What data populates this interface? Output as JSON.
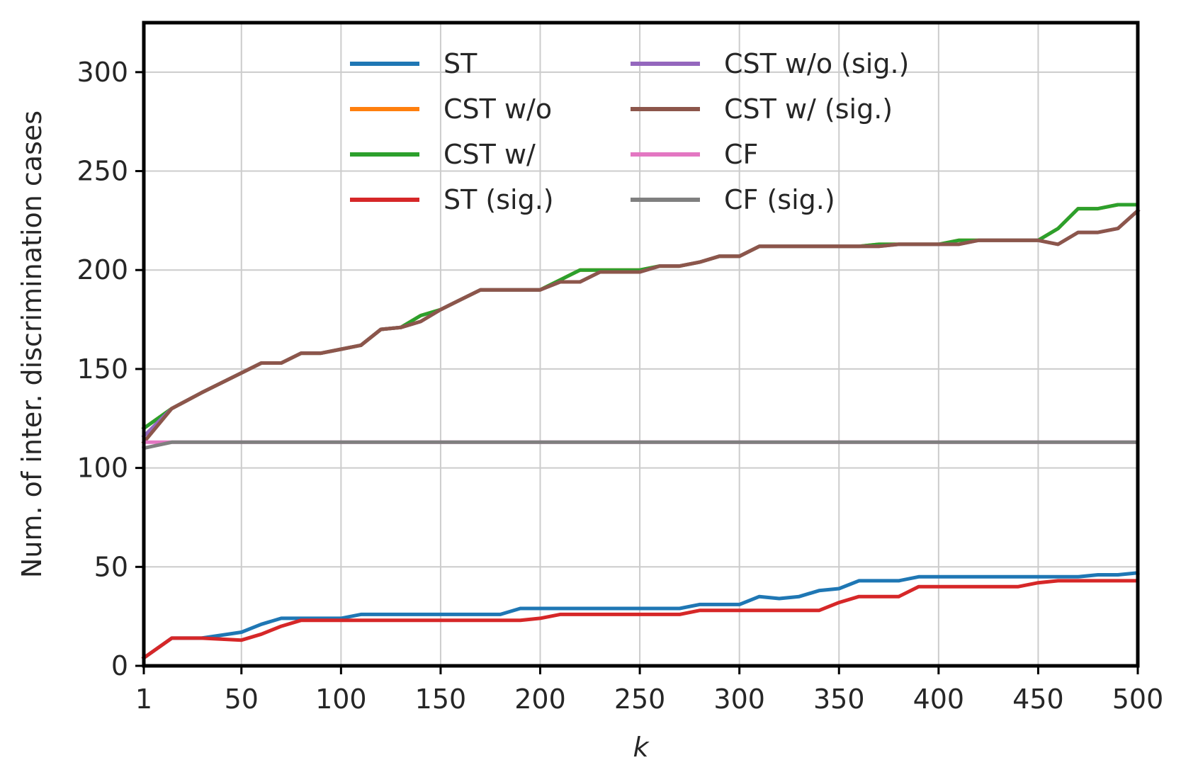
{
  "chart_data": {
    "type": "line",
    "title": "",
    "xlabel": "k",
    "ylabel": "Num. of inter. discrimination cases",
    "xlim": [
      1,
      500
    ],
    "ylim": [
      0,
      325
    ],
    "xticks": [
      1,
      50,
      100,
      150,
      200,
      250,
      300,
      350,
      400,
      450,
      500
    ],
    "yticks": [
      0,
      50,
      100,
      150,
      200,
      250,
      300
    ],
    "grid": true,
    "legend_position": "top",
    "legend_columns": 2,
    "series": [
      {
        "name": "ST",
        "color": "#1f77b4",
        "x": [
          1,
          15,
          30,
          50,
          60,
          70,
          80,
          90,
          100,
          110,
          120,
          130,
          140,
          150,
          160,
          170,
          180,
          190,
          200,
          250,
          270,
          280,
          290,
          300,
          310,
          320,
          330,
          340,
          350,
          360,
          370,
          380,
          390,
          400,
          450,
          470,
          480,
          490,
          500
        ],
        "y": [
          4,
          14,
          14,
          17,
          21,
          24,
          24,
          24,
          24,
          26,
          26,
          26,
          26,
          26,
          26,
          26,
          26,
          29,
          29,
          29,
          29,
          31,
          31,
          31,
          35,
          34,
          35,
          38,
          39,
          43,
          43,
          43,
          45,
          45,
          45,
          45,
          46,
          46,
          47
        ]
      },
      {
        "name": "CST w/o",
        "color": "#ff7f0e",
        "x": [
          1,
          15,
          30,
          50,
          60,
          70,
          80,
          90,
          100,
          110,
          120,
          130,
          140,
          150,
          160,
          170,
          180,
          190,
          200,
          210,
          220,
          230,
          240,
          250,
          260,
          270,
          280,
          290,
          300,
          310,
          320,
          330,
          340,
          350,
          360,
          370,
          380,
          390,
          400,
          410,
          420,
          430,
          440,
          450,
          460,
          470,
          480,
          490,
          500
        ],
        "y": [
          120,
          130,
          138,
          148,
          153,
          153,
          158,
          158,
          160,
          162,
          170,
          171,
          177,
          180,
          185,
          190,
          190,
          190,
          190,
          195,
          200,
          200,
          200,
          200,
          202,
          202,
          204,
          207,
          207,
          212,
          212,
          212,
          212,
          212,
          212,
          213,
          213,
          213,
          213,
          215,
          215,
          215,
          215,
          215,
          221,
          231,
          231,
          233,
          233
        ]
      },
      {
        "name": "CST w/",
        "color": "#2ca02c",
        "x": [
          1,
          15,
          30,
          50,
          60,
          70,
          80,
          90,
          100,
          110,
          120,
          130,
          140,
          150,
          160,
          170,
          180,
          190,
          200,
          210,
          220,
          230,
          240,
          250,
          260,
          270,
          280,
          290,
          300,
          310,
          320,
          330,
          340,
          350,
          360,
          370,
          380,
          390,
          400,
          410,
          420,
          430,
          440,
          450,
          460,
          470,
          480,
          490,
          500
        ],
        "y": [
          120,
          130,
          138,
          148,
          153,
          153,
          158,
          158,
          160,
          162,
          170,
          171,
          177,
          180,
          185,
          190,
          190,
          190,
          190,
          195,
          200,
          200,
          200,
          200,
          202,
          202,
          204,
          207,
          207,
          212,
          212,
          212,
          212,
          212,
          212,
          213,
          213,
          213,
          213,
          215,
          215,
          215,
          215,
          215,
          221,
          231,
          231,
          233,
          233
        ]
      },
      {
        "name": "ST (sig.)",
        "color": "#d62728",
        "x": [
          1,
          15,
          30,
          50,
          60,
          70,
          80,
          90,
          100,
          110,
          120,
          130,
          140,
          150,
          160,
          170,
          180,
          190,
          200,
          210,
          220,
          230,
          240,
          250,
          260,
          270,
          280,
          290,
          300,
          310,
          320,
          330,
          340,
          350,
          360,
          370,
          380,
          390,
          400,
          410,
          420,
          430,
          440,
          450,
          460,
          470,
          480,
          490,
          500
        ],
        "y": [
          4,
          14,
          14,
          13,
          16,
          20,
          23,
          23,
          23,
          23,
          23,
          23,
          23,
          23,
          23,
          23,
          23,
          23,
          24,
          26,
          26,
          26,
          26,
          26,
          26,
          26,
          28,
          28,
          28,
          28,
          28,
          28,
          28,
          32,
          35,
          35,
          35,
          40,
          40,
          40,
          40,
          40,
          40,
          42,
          43,
          43,
          43,
          43,
          43
        ]
      },
      {
        "name": "CST w/o (sig.)",
        "color": "#9467bd",
        "x": [
          1,
          15,
          30,
          50,
          60,
          70,
          80,
          90,
          100,
          110,
          120,
          130,
          140,
          150,
          160,
          170,
          180,
          190,
          200,
          210,
          220,
          230,
          240,
          250,
          260,
          270,
          280,
          290,
          300,
          310,
          320,
          330,
          340,
          350,
          360,
          370,
          380,
          390,
          400,
          410,
          420,
          430,
          440,
          450,
          460,
          470,
          480,
          490,
          500
        ],
        "y": [
          116,
          130,
          138,
          148,
          153,
          153,
          158,
          158,
          160,
          162,
          170,
          171,
          174,
          180,
          185,
          190,
          190,
          190,
          190,
          194,
          194,
          199,
          199,
          199,
          202,
          202,
          204,
          207,
          207,
          212,
          212,
          212,
          212,
          212,
          212,
          212,
          213,
          213,
          213,
          213,
          215,
          215,
          215,
          215,
          213,
          219,
          219,
          221,
          230
        ]
      },
      {
        "name": "CST w/ (sig.)",
        "color": "#8c564b",
        "x": [
          1,
          15,
          30,
          50,
          60,
          70,
          80,
          90,
          100,
          110,
          120,
          130,
          140,
          150,
          160,
          170,
          180,
          190,
          200,
          210,
          220,
          230,
          240,
          250,
          260,
          270,
          280,
          290,
          300,
          310,
          320,
          330,
          340,
          350,
          360,
          370,
          380,
          390,
          400,
          410,
          420,
          430,
          440,
          450,
          460,
          470,
          480,
          490,
          500
        ],
        "y": [
          113,
          130,
          138,
          148,
          153,
          153,
          158,
          158,
          160,
          162,
          170,
          171,
          174,
          180,
          185,
          190,
          190,
          190,
          190,
          194,
          194,
          199,
          199,
          199,
          202,
          202,
          204,
          207,
          207,
          212,
          212,
          212,
          212,
          212,
          212,
          212,
          213,
          213,
          213,
          213,
          215,
          215,
          215,
          215,
          213,
          219,
          219,
          221,
          230
        ]
      },
      {
        "name": "CF",
        "color": "#e377c2",
        "x": [
          1,
          15,
          500
        ],
        "y": [
          113,
          113,
          113
        ]
      },
      {
        "name": "CF (sig.)",
        "color": "#7f7f7f",
        "x": [
          1,
          15,
          500
        ],
        "y": [
          110,
          113,
          113
        ]
      }
    ]
  }
}
